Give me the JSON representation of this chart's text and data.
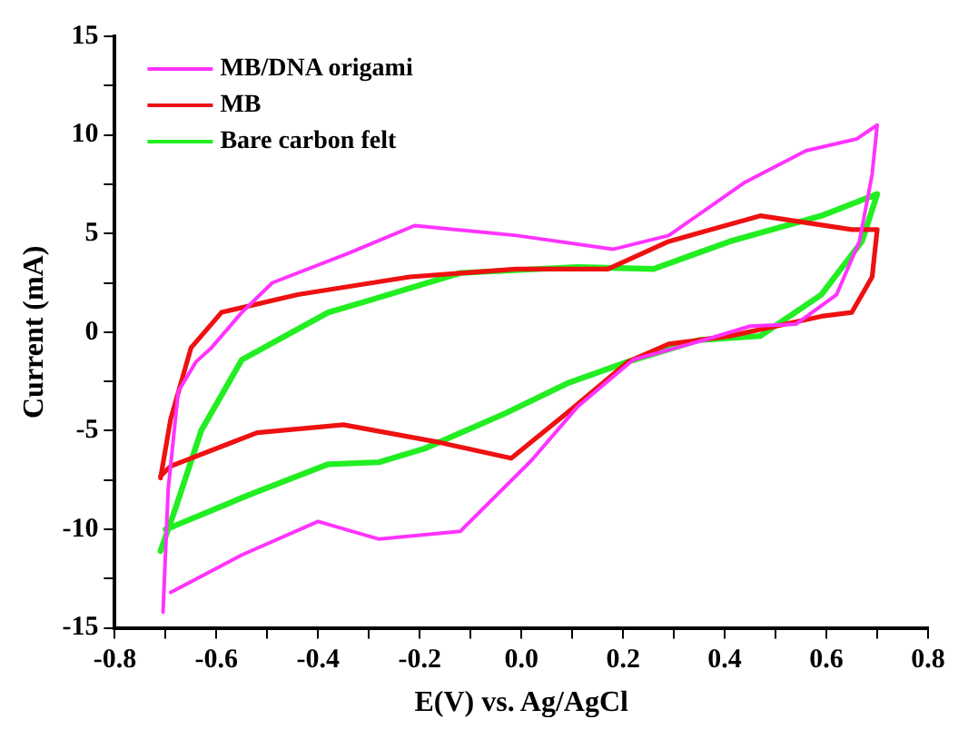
{
  "chart_data": {
    "type": "line",
    "xlabel": "E(V) vs. Ag/AgCl",
    "ylabel": "Current (mA)",
    "xlim": [
      -0.8,
      0.8
    ],
    "xticks": [
      -0.8,
      {
        "value": -0.7,
        "label": null
      },
      -0.6,
      {
        "value": -0.5,
        "label": null
      },
      -0.4,
      {
        "value": -0.3,
        "label": null
      },
      -0.2,
      {
        "value": -0.1,
        "label": null
      },
      {
        "value": 0,
        "label": "0.0"
      },
      {
        "value": 0.1,
        "label": null
      },
      0.2,
      {
        "value": 0.3,
        "label": null
      },
      0.4,
      {
        "value": 0.5,
        "label": null
      },
      0.6,
      {
        "value": 0.7,
        "label": null
      },
      0.8
    ],
    "ylim": [
      -15,
      15
    ],
    "yticks": [
      -15,
      {
        "value": -12.5,
        "label": null
      },
      -10,
      {
        "value": -7.5,
        "label": null
      },
      -5,
      {
        "value": -2.5,
        "label": null
      },
      0,
      {
        "value": 2.5,
        "label": null
      },
      5,
      {
        "value": 7.5,
        "label": null
      },
      10,
      {
        "value": 12.5,
        "label": null
      },
      15
    ],
    "grid": false,
    "legend": "top left",
    "marker": "none",
    "line_style": "solid",
    "series": [
      {
        "name": "MB/DNA origami",
        "color": "#ff33ff",
        "x": [
          -0.705,
          -0.695,
          -0.675,
          -0.64,
          -0.61,
          -0.55,
          -0.49,
          -0.34,
          -0.21,
          -0.01,
          0.18,
          0.29,
          0.44,
          0.56,
          0.66,
          0.7,
          0.69,
          0.665,
          0.62,
          0.54,
          0.45,
          0.36,
          0.22,
          0.11,
          0.02,
          -0.12,
          -0.28,
          -0.4,
          -0.55,
          -0.69
        ],
        "values": [
          -14.2,
          -8,
          -3,
          -1.5,
          -0.8,
          1.0,
          2.5,
          4.0,
          5.4,
          4.9,
          4.2,
          4.9,
          7.6,
          9.2,
          9.8,
          10.5,
          8.0,
          4.6,
          1.9,
          0.4,
          0.3,
          -0.4,
          -1.4,
          -3.8,
          -6.5,
          -10.1,
          -10.5,
          -9.6,
          -11.3,
          -13.2
        ]
      },
      {
        "name": "MB",
        "color": "#ee1111",
        "x": [
          -0.71,
          -0.69,
          -0.65,
          -0.59,
          -0.44,
          -0.22,
          -0.01,
          0.17,
          0.29,
          0.47,
          0.65,
          0.7,
          0.69,
          0.65,
          0.59,
          0.41,
          0.29,
          0.21,
          0.09,
          -0.02,
          -0.16,
          -0.35,
          -0.52,
          -0.69,
          -0.71
        ],
        "values": [
          -7.4,
          -4.4,
          -0.8,
          1.0,
          1.9,
          2.8,
          3.2,
          3.2,
          4.6,
          5.9,
          5.2,
          5.2,
          2.8,
          1.0,
          0.8,
          -0.2,
          -0.6,
          -1.5,
          -4.1,
          -6.4,
          -5.6,
          -4.7,
          -5.1,
          -6.8,
          -7.3
        ]
      },
      {
        "name": "Bare carbon felt",
        "color": "#22ee22",
        "x": [
          -0.71,
          -0.68,
          -0.63,
          -0.55,
          -0.38,
          -0.3,
          -0.12,
          0.11,
          0.26,
          0.41,
          0.59,
          0.7,
          0.67,
          0.59,
          0.47,
          0.35,
          0.21,
          0.09,
          -0.03,
          -0.19,
          -0.28,
          -0.38,
          -0.54,
          -0.68,
          -0.7
        ],
        "values": [
          -11.1,
          -8.9,
          -5.0,
          -1.4,
          1.0,
          1.6,
          3.0,
          3.3,
          3.2,
          4.6,
          5.9,
          7.0,
          4.6,
          1.9,
          -0.2,
          -0.4,
          -1.5,
          -2.6,
          -4.1,
          -5.9,
          -6.6,
          -6.7,
          -8.3,
          -9.8,
          -10.0
        ]
      }
    ]
  }
}
